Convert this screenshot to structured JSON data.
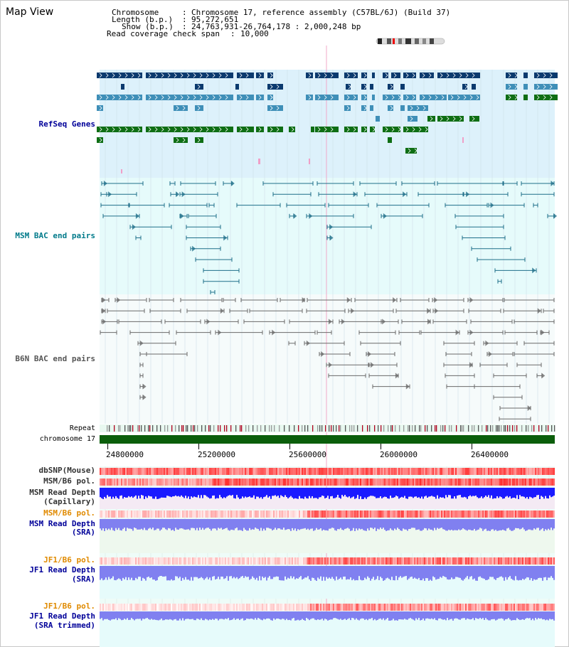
{
  "window": {
    "title": "Map View"
  },
  "header": {
    "chromosome_key": "Chromosome    ",
    "chromosome_value": "Chromosome 17, reference assembly (C57BL/6J) (Build 37)",
    "length_key": "Length (b.p.)",
    "length_value": "95,272,651",
    "show_key": "Show (b.p.)",
    "show_value": "24,763,931-26,764,178 : 2,000,248 bp",
    "span_key": "Read coverage check span",
    "span_value": "10,000"
  },
  "tracks": {
    "refseq": "RefSeq Genes",
    "msm_bac": "MSM BAC end pairs",
    "b6n_bac": "B6N BAC end pairs",
    "repeat": "Repeat",
    "chromosome": "chromosome 17",
    "dbsnp": "dbSNP(Mouse)",
    "msm_b6_pol_1": "MSM/B6 pol.",
    "msm_read_depth_1": "MSM Read Depth",
    "msm_read_depth_1_sub": "(Capillary)",
    "msm_b6_pol_2": "MSM/B6 pol.",
    "msm_read_depth_2": "MSM Read Depth",
    "msm_read_depth_2_sub": "(SRA)",
    "jf1_b6_pol_1": "JF1/B6 pol.",
    "jf1_read_depth_1": "JF1 Read Depth",
    "jf1_read_depth_1_sub": "(SRA)",
    "jf1_b6_pol_2": "JF1/B6 pol.",
    "jf1_read_depth_2": "JF1 Read Depth",
    "jf1_read_depth_2_sub": "(SRA trimmed)"
  },
  "axis": {
    "view_start": 24763931,
    "view_end": 26764178,
    "ticks": [
      24800000,
      25200000,
      25600000,
      26000000,
      26400000
    ],
    "tick_labels": [
      "24800000",
      "25200000",
      "25600000",
      "26000000",
      "26400000"
    ]
  },
  "colors": {
    "refseq_bg": "#ddf1fb",
    "bac_bg": "#e6fbfb",
    "b6n_bg": "#f4fbfb",
    "gene_dark": "#0b3a6e",
    "gene_mid": "#3f8fb8",
    "gene_green": "#0e6e14",
    "msm_bac": "#1f6f8a",
    "b6n_bac": "#6a6a6a",
    "chromosome": "#0b5e0b",
    "depth_blue": "#1a1aff",
    "depth_sra": "#8080f0",
    "label_blue": "#000099",
    "label_teal": "#007a8a",
    "label_orange": "#e08a00",
    "label_gray": "#555555"
  }
}
